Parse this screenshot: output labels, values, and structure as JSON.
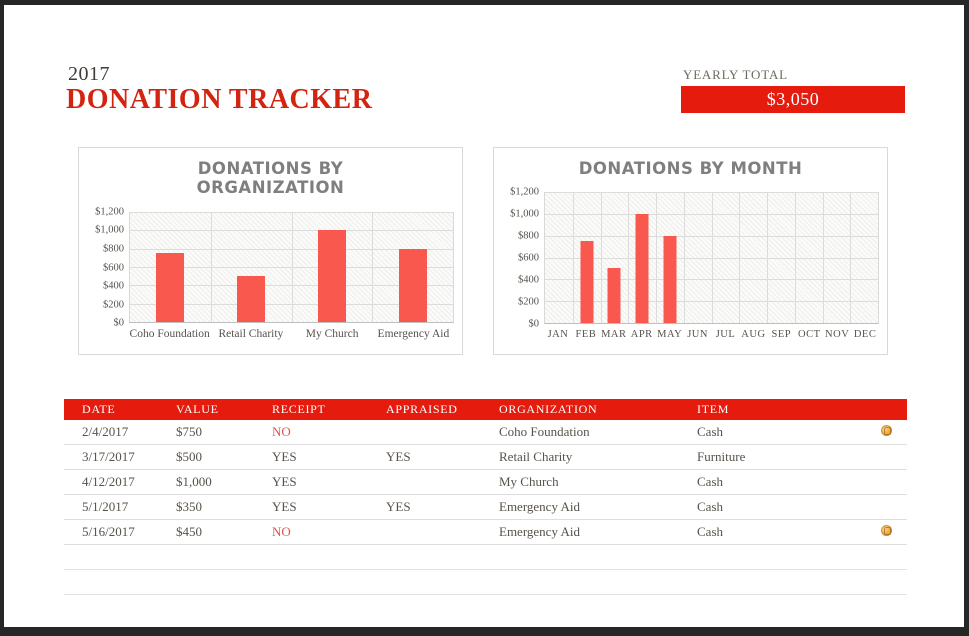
{
  "header": {
    "year": "2017",
    "title": "DONATION TRACKER",
    "yearly_total_label": "YEARLY TOTAL",
    "yearly_total_value": "$3,050"
  },
  "colors": {
    "accent_red": "#E51B0E",
    "title_red": "#D32311",
    "bar_red": "#F8584D",
    "no_red": "#E0544A"
  },
  "chart_data": [
    {
      "type": "bar",
      "title": "DONATIONS BY ORGANIZATION",
      "categories": [
        "Coho Foundation",
        "Retail Charity",
        "My Church",
        "Emergency Aid"
      ],
      "values": [
        750,
        500,
        1000,
        800
      ],
      "ticks": [
        "$1,200",
        "$1,000",
        "$800",
        "$600",
        "$400",
        "$200",
        "$0"
      ],
      "ylim": [
        0,
        1200
      ],
      "grid": true,
      "legend": "none"
    },
    {
      "type": "bar",
      "title": "DONATIONS BY MONTH",
      "categories": [
        "JAN",
        "FEB",
        "MAR",
        "APR",
        "MAY",
        "JUN",
        "JUL",
        "AUG",
        "SEP",
        "OCT",
        "NOV",
        "DEC"
      ],
      "values": [
        0,
        750,
        500,
        1000,
        800,
        0,
        0,
        0,
        0,
        0,
        0,
        0
      ],
      "ticks": [
        "$1,200",
        "$1,000",
        "$800",
        "$600",
        "$400",
        "$200",
        "$0"
      ],
      "ylim": [
        0,
        1200
      ],
      "grid": true,
      "legend": "none"
    }
  ],
  "table": {
    "headers": [
      "DATE",
      "VALUE",
      "RECEIPT",
      "APPRAISED",
      "ORGANIZATION",
      "ITEM"
    ],
    "rows": [
      {
        "date": "2/4/2017",
        "value": "$750",
        "receipt": "NO",
        "appraised": "",
        "organization": "Coho Foundation",
        "item": "Cash",
        "note": true
      },
      {
        "date": "3/17/2017",
        "value": "$500",
        "receipt": "YES",
        "appraised": "YES",
        "organization": "Retail Charity",
        "item": "Furniture",
        "note": false
      },
      {
        "date": "4/12/2017",
        "value": "$1,000",
        "receipt": "YES",
        "appraised": "",
        "organization": "My Church",
        "item": "Cash",
        "note": false
      },
      {
        "date": "5/1/2017",
        "value": "$350",
        "receipt": "YES",
        "appraised": "YES",
        "organization": "Emergency Aid",
        "item": "Cash",
        "note": false
      },
      {
        "date": "5/16/2017",
        "value": "$450",
        "receipt": "NO",
        "appraised": "",
        "organization": "Emergency Aid",
        "item": "Cash",
        "note": true
      }
    ],
    "empty_rows": 2
  }
}
